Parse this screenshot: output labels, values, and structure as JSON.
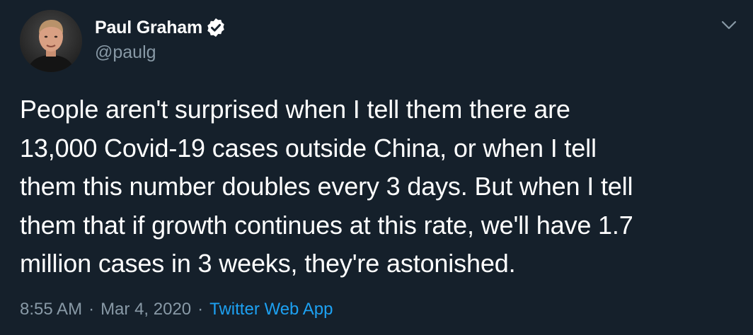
{
  "author": {
    "display_name": "Paul Graham",
    "handle": "@paulg",
    "verified": true
  },
  "tweet": {
    "lines": [
      "People aren't surprised when I tell them there are",
      "13,000 Covid-19 cases outside China, or when I tell",
      "them this number doubles every 3 days. But when I tell",
      "them that if growth continues at this rate, we'll have 1.7",
      "million cases in 3 weeks, they're astonished."
    ]
  },
  "meta": {
    "time": "8:55 AM",
    "separator": "·",
    "date": "Mar 4, 2020",
    "source": "Twitter Web App"
  },
  "icons": {
    "verified": "verified-badge-icon",
    "menu": "chevron-down-icon"
  },
  "colors": {
    "background": "#15202b",
    "text": "#ffffff",
    "secondary": "#8899a6",
    "accent": "#1da1f2"
  }
}
